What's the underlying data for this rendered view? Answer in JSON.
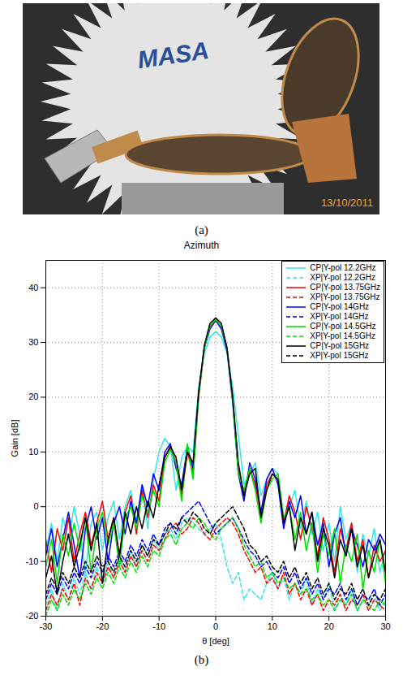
{
  "figure": {
    "a": {
      "label": "(a)",
      "photo_texts": [
        "MASA",
        "13/10/2011"
      ]
    },
    "b": {
      "label": "(b)"
    }
  },
  "chart_data": {
    "type": "line",
    "title": "Azimuth",
    "x_label": "θ [deg]",
    "y_label": "Gain [dB]",
    "xlim": [
      -30,
      30
    ],
    "ylim": [
      -20,
      45
    ],
    "xticks": [
      -30,
      -20,
      -10,
      0,
      10,
      20,
      30
    ],
    "yticks": [
      -20,
      -10,
      0,
      10,
      20,
      30,
      40
    ],
    "grid": true,
    "legend": "top-right",
    "x": [
      -30,
      -29,
      -28,
      -27,
      -26,
      -25,
      -24,
      -23,
      -22,
      -21,
      -20,
      -19,
      -18,
      -17,
      -16,
      -15,
      -14,
      -13,
      -12,
      -11,
      -10,
      -9,
      -8,
      -7,
      -6,
      -5,
      -4,
      -3,
      -2,
      -1,
      0,
      1,
      2,
      3,
      4,
      5,
      6,
      7,
      8,
      9,
      10,
      11,
      12,
      13,
      14,
      15,
      16,
      17,
      18,
      19,
      20,
      21,
      22,
      23,
      24,
      25,
      26,
      27,
      28,
      29,
      30
    ],
    "series": [
      {
        "name": "CP|Y-pol 12.2GHz",
        "color": "#33e6e6",
        "line_style": "solid",
        "values": [
          -8,
          -3,
          -10,
          -2,
          -6,
          0,
          -5,
          -12,
          -3,
          -1,
          -8,
          -2,
          1,
          -6,
          0,
          3,
          -3,
          4,
          -4,
          5,
          10,
          12.5,
          11,
          3,
          9,
          11,
          10,
          22,
          28,
          31,
          32,
          31,
          28,
          22,
          13,
          4,
          6,
          8,
          2,
          5,
          7,
          6,
          -2,
          0,
          3,
          -4,
          1,
          -5,
          -1,
          -8,
          -3,
          -10,
          0,
          -6,
          -3,
          -12,
          -5,
          -9,
          -4,
          -12,
          -8
        ]
      },
      {
        "name": "XP|Y-pol 12.2GHz",
        "color": "#33e6e6",
        "line_style": "dashed",
        "values": [
          -18,
          -15,
          -19,
          -14,
          -17,
          -13,
          -16,
          -12,
          -15,
          -11,
          -14,
          -10,
          -13,
          -9,
          -12,
          -8,
          -11,
          -7,
          -9,
          -6,
          -8,
          -5,
          -4,
          -6,
          -3,
          -2,
          -3,
          -4,
          -5,
          -4,
          -3,
          -6,
          -11,
          -14,
          -12,
          -17,
          -15,
          -16,
          -17,
          -14,
          -12,
          -15,
          -13,
          -17,
          -14,
          -16,
          -13,
          -18,
          -15,
          -17,
          -14,
          -19,
          -16,
          -18,
          -15,
          -19,
          -17,
          -18,
          -16,
          -19,
          -17
        ]
      },
      {
        "name": "CP|Y-pol 13.75GHz",
        "color": "#ff0000",
        "line_style": "solid",
        "values": [
          -6,
          -12,
          -4,
          -8,
          -2,
          -10,
          -5,
          -1,
          -7,
          -3,
          1,
          -6,
          -2,
          -9,
          -1,
          2,
          -5,
          3,
          -2,
          4,
          1,
          9,
          11,
          8,
          2,
          10,
          6,
          20,
          29,
          33,
          34.3,
          33,
          29,
          20,
          7,
          2,
          7,
          4,
          -2,
          4,
          6,
          5,
          -3,
          2,
          -1,
          -6,
          0,
          -4,
          -9,
          -2,
          -6,
          -12,
          -4,
          -8,
          -3,
          -10,
          -6,
          -13,
          -7,
          -10,
          -8
        ]
      },
      {
        "name": "XP|Y-pol 13.75GHz",
        "color": "#ff0000",
        "line_style": "dashed",
        "values": [
          -19,
          -16,
          -18,
          -15,
          -17,
          -14,
          -18,
          -13,
          -15,
          -12,
          -14,
          -11,
          -13,
          -10,
          -12,
          -9,
          -11,
          -8,
          -10,
          -7,
          -8,
          -6,
          -4,
          -3,
          -5,
          -4,
          -2,
          -3,
          -5,
          -6,
          -4,
          -3,
          -2,
          -3,
          -5,
          -8,
          -10,
          -12,
          -11,
          -14,
          -13,
          -15,
          -12,
          -16,
          -14,
          -17,
          -15,
          -18,
          -16,
          -19,
          -17,
          -18,
          -16,
          -19,
          -17,
          -18,
          -16,
          -19,
          -17,
          -18,
          -19
        ]
      },
      {
        "name": "CP|Y-pol 14GHz",
        "color": "#0000ff",
        "line_style": "solid",
        "values": [
          -9,
          -4,
          -11,
          -6,
          -1,
          -7,
          -13,
          -4,
          0,
          -6,
          -2,
          -10,
          -3,
          0,
          -5,
          1,
          -3,
          4,
          0,
          6,
          3,
          10,
          11.5,
          7,
          4,
          11,
          7,
          21,
          29,
          32.5,
          34,
          32.5,
          28.5,
          19,
          6,
          1,
          8,
          5,
          -1,
          5,
          7,
          4,
          -4,
          1,
          -2,
          2,
          -5,
          -1,
          -7,
          -3,
          -11,
          -5,
          -2,
          -9,
          -4,
          -7,
          -11,
          -6,
          -8,
          -5,
          -7
        ]
      },
      {
        "name": "XP|Y-pol 14GHz",
        "color": "#0000ff",
        "line_style": "dashed",
        "values": [
          -17,
          -14,
          -16,
          -13,
          -15,
          -12,
          -14,
          -11,
          -13,
          -10,
          -12,
          -9,
          -11,
          -8,
          -10,
          -7,
          -9,
          -6,
          -8,
          -5,
          -7,
          -4,
          -3,
          -5,
          -2,
          -1,
          0,
          1,
          -1,
          -3,
          -5,
          -4,
          -3,
          -2,
          -4,
          -6,
          -8,
          -9,
          -11,
          -10,
          -12,
          -13,
          -11,
          -14,
          -12,
          -15,
          -13,
          -16,
          -14,
          -17,
          -15,
          -16,
          -14,
          -17,
          -15,
          -18,
          -16,
          -17,
          -15,
          -18,
          -16
        ]
      },
      {
        "name": "CP|Y-pol 14.5GHz",
        "color": "#00dd00",
        "line_style": "solid",
        "values": [
          -11,
          -6,
          -14,
          -5,
          -9,
          -3,
          -8,
          -2,
          -12,
          -4,
          -1,
          -7,
          -3,
          -11,
          -2,
          0,
          -4,
          2,
          -1,
          3,
          0,
          8,
          10.5,
          8,
          1,
          11.5,
          5,
          20.5,
          29,
          33,
          34.2,
          33,
          29,
          19.5,
          6,
          3,
          7,
          3,
          -3,
          3,
          5,
          6,
          -2,
          0,
          -6,
          -1,
          -8,
          -3,
          -12,
          -5,
          -9,
          -4,
          -14,
          -7,
          -10,
          -5,
          -15,
          -8,
          -12,
          -6,
          -14
        ]
      },
      {
        "name": "XP|Y-pol 14.5GHz",
        "color": "#00dd00",
        "line_style": "dashed",
        "values": [
          -20,
          -17,
          -19,
          -16,
          -18,
          -15,
          -17,
          -14,
          -16,
          -13,
          -15,
          -12,
          -14,
          -11,
          -13,
          -10,
          -12,
          -9,
          -11,
          -8,
          -9,
          -6,
          -5,
          -7,
          -4,
          -3,
          -4,
          -2,
          -3,
          -5,
          -6,
          -4,
          -3,
          -2,
          -4,
          -7,
          -9,
          -11,
          -10,
          -13,
          -12,
          -14,
          -13,
          -15,
          -14,
          -16,
          -15,
          -17,
          -16,
          -18,
          -17,
          -19,
          -17,
          -18,
          -16,
          -19,
          -17,
          -18,
          -19,
          -17,
          -18
        ]
      },
      {
        "name": "CP|Y-pol 15GHz",
        "color": "#000000",
        "line_style": "solid",
        "values": [
          -13,
          -9,
          -16,
          -10,
          -5,
          -11,
          -7,
          -2,
          -8,
          -3,
          -14,
          -6,
          -2,
          -9,
          -1,
          -5,
          0,
          -4,
          1,
          -2,
          4,
          9,
          11,
          9,
          3,
          10,
          8,
          21,
          29.5,
          33.5,
          34.5,
          33.5,
          29,
          20,
          8,
          2,
          6,
          7,
          -2,
          3,
          6,
          5,
          -3,
          0,
          -8,
          -2,
          -5,
          -1,
          -10,
          -4,
          -7,
          -13,
          -6,
          -9,
          -4,
          -11,
          -7,
          -13,
          -9,
          -6,
          -12
        ]
      },
      {
        "name": "XP|Y-pol 15GHz",
        "color": "#000000",
        "line_style": "dashed",
        "values": [
          -16,
          -13,
          -15,
          -12,
          -14,
          -11,
          -13,
          -10,
          -12,
          -9,
          -11,
          -10,
          -12,
          -9,
          -11,
          -8,
          -10,
          -7,
          -9,
          -6,
          -7,
          -5,
          -3,
          -4,
          -2,
          -3,
          -1,
          -2,
          -4,
          -5,
          -3,
          -2,
          -1,
          0,
          -2,
          -4,
          -7,
          -8,
          -10,
          -9,
          -11,
          -12,
          -10,
          -13,
          -11,
          -14,
          -12,
          -15,
          -13,
          -16,
          -14,
          -17,
          -15,
          -16,
          -14,
          -17,
          -15,
          -18,
          -16,
          -17,
          -15
        ]
      }
    ]
  }
}
